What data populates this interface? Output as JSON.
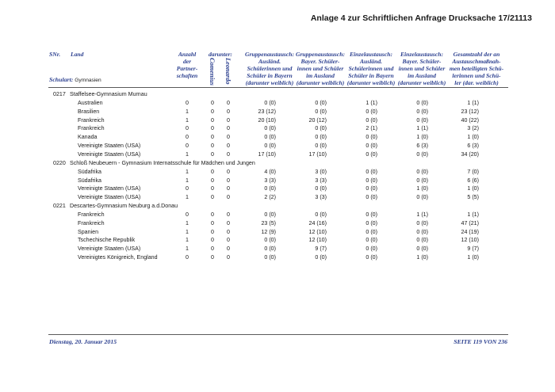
{
  "document_title": "Anlage 4 zur Schriftlichen Anfrage Drucksache 17/21113",
  "header": {
    "snr": "SNr.",
    "land": "Land",
    "anzahl": [
      "Anzahl",
      "der",
      "Partner-",
      "schaften"
    ],
    "darunter": "darunter:",
    "comenius": "Comenius",
    "leonardo": "Leonardo",
    "col_gruppe_ausl": [
      "Gruppenaustausch:",
      "Ausländ.",
      "Schülerinnen und",
      "Schüler in Bayern",
      "(darunter weiblich)"
    ],
    "col_gruppe_bayer": [
      "Gruppenaustausch:",
      "Bayer. Schüler-",
      "innen und Schüler",
      "im Ausland",
      "(darunter weiblich)"
    ],
    "col_einzel_ausl": [
      "Einzelaustausch:",
      "Ausländ.",
      "Schülerinnen und",
      "Schüler in Bayern",
      "(darunter weiblich)"
    ],
    "col_einzel_bayer": [
      "Einzelaustausch:",
      "Bayer. Schüler-",
      "innen und Schüler",
      "im Ausland",
      "(darunter weiblich)"
    ],
    "col_gesamt": [
      "Gesamtzahl der an",
      "Austauschmaßnah-",
      "men beteiligten Schü-",
      "lerinnen und Schü-",
      "ler (dar. weiblich)"
    ],
    "schulart_label": "Schulart:",
    "schulart_value": "Gymnasien"
  },
  "schools": [
    {
      "id": "0217",
      "name": "Staffelsee-Gymnasium Murnau",
      "rows": [
        {
          "land": "Australien",
          "anzahl": "0",
          "comenius": "0",
          "leonardo": "0",
          "ga": "0 (0)",
          "gb": "0 (0)",
          "ea": "1 (1)",
          "eb": "0 (0)",
          "total": "1 (1)"
        },
        {
          "land": "Brasilien",
          "anzahl": "1",
          "comenius": "0",
          "leonardo": "0",
          "ga": "23 (12)",
          "gb": "0 (0)",
          "ea": "0 (0)",
          "eb": "0 (0)",
          "total": "23 (12)"
        },
        {
          "land": "Frankreich",
          "anzahl": "1",
          "comenius": "0",
          "leonardo": "0",
          "ga": "20 (10)",
          "gb": "20 (12)",
          "ea": "0 (0)",
          "eb": "0 (0)",
          "total": "40 (22)"
        },
        {
          "land": "Frankreich",
          "anzahl": "0",
          "comenius": "0",
          "leonardo": "0",
          "ga": "0 (0)",
          "gb": "0 (0)",
          "ea": "2 (1)",
          "eb": "1 (1)",
          "total": "3 (2)"
        },
        {
          "land": "Kanada",
          "anzahl": "0",
          "comenius": "0",
          "leonardo": "0",
          "ga": "0 (0)",
          "gb": "0 (0)",
          "ea": "0 (0)",
          "eb": "1 (0)",
          "total": "1 (0)"
        },
        {
          "land": "Vereinigte Staaten (USA)",
          "anzahl": "0",
          "comenius": "0",
          "leonardo": "0",
          "ga": "0 (0)",
          "gb": "0 (0)",
          "ea": "0 (0)",
          "eb": "6 (3)",
          "total": "6 (3)"
        },
        {
          "land": "Vereinigte Staaten (USA)",
          "anzahl": "1",
          "comenius": "0",
          "leonardo": "0",
          "ga": "17 (10)",
          "gb": "17 (10)",
          "ea": "0 (0)",
          "eb": "0 (0)",
          "total": "34 (20)"
        }
      ]
    },
    {
      "id": "0220",
      "name": "Schloß Neubeuern - Gymnasium Internatsschule für Mädchen und Jungen",
      "rows": [
        {
          "land": "Südafrika",
          "anzahl": "1",
          "comenius": "0",
          "leonardo": "0",
          "ga": "4 (0)",
          "gb": "3 (0)",
          "ea": "0 (0)",
          "eb": "0 (0)",
          "total": "7 (0)"
        },
        {
          "land": "Südafrika",
          "anzahl": "1",
          "comenius": "0",
          "leonardo": "0",
          "ga": "3 (3)",
          "gb": "3 (3)",
          "ea": "0 (0)",
          "eb": "0 (0)",
          "total": "6 (6)"
        },
        {
          "land": "Vereinigte Staaten (USA)",
          "anzahl": "0",
          "comenius": "0",
          "leonardo": "0",
          "ga": "0 (0)",
          "gb": "0 (0)",
          "ea": "0 (0)",
          "eb": "1 (0)",
          "total": "1 (0)"
        },
        {
          "land": "Vereinigte Staaten (USA)",
          "anzahl": "1",
          "comenius": "0",
          "leonardo": "0",
          "ga": "2 (2)",
          "gb": "3 (3)",
          "ea": "0 (0)",
          "eb": "0 (0)",
          "total": "5 (5)"
        }
      ]
    },
    {
      "id": "0221",
      "name": "Descartes-Gymnasium Neuburg a.d.Donau",
      "rows": [
        {
          "land": "Frankreich",
          "anzahl": "0",
          "comenius": "0",
          "leonardo": "0",
          "ga": "0 (0)",
          "gb": "0 (0)",
          "ea": "0 (0)",
          "eb": "1 (1)",
          "total": "1 (1)"
        },
        {
          "land": "Frankreich",
          "anzahl": "1",
          "comenius": "0",
          "leonardo": "0",
          "ga": "23 (5)",
          "gb": "24 (16)",
          "ea": "0 (0)",
          "eb": "0 (0)",
          "total": "47 (21)"
        },
        {
          "land": "Spanien",
          "anzahl": "1",
          "comenius": "0",
          "leonardo": "0",
          "ga": "12 (9)",
          "gb": "12 (10)",
          "ea": "0 (0)",
          "eb": "0 (0)",
          "total": "24 (19)"
        },
        {
          "land": "Tschechische Republik",
          "anzahl": "1",
          "comenius": "0",
          "leonardo": "0",
          "ga": "0 (0)",
          "gb": "12 (10)",
          "ea": "0 (0)",
          "eb": "0 (0)",
          "total": "12 (10)"
        },
        {
          "land": "Vereinigte Staaten (USA)",
          "anzahl": "1",
          "comenius": "0",
          "leonardo": "0",
          "ga": "0 (0)",
          "gb": "9 (7)",
          "ea": "0 (0)",
          "eb": "0 (0)",
          "total": "9 (7)"
        },
        {
          "land": "Vereinigtes Königreich, England",
          "anzahl": "0",
          "comenius": "0",
          "leonardo": "0",
          "ga": "0 (0)",
          "gb": "0 (0)",
          "ea": "0 (0)",
          "eb": "1 (0)",
          "total": "1 (0)"
        }
      ]
    }
  ],
  "footer": {
    "date": "Dienstag, 20. Januar 2015",
    "page": "SEITE 119 VON 236"
  }
}
